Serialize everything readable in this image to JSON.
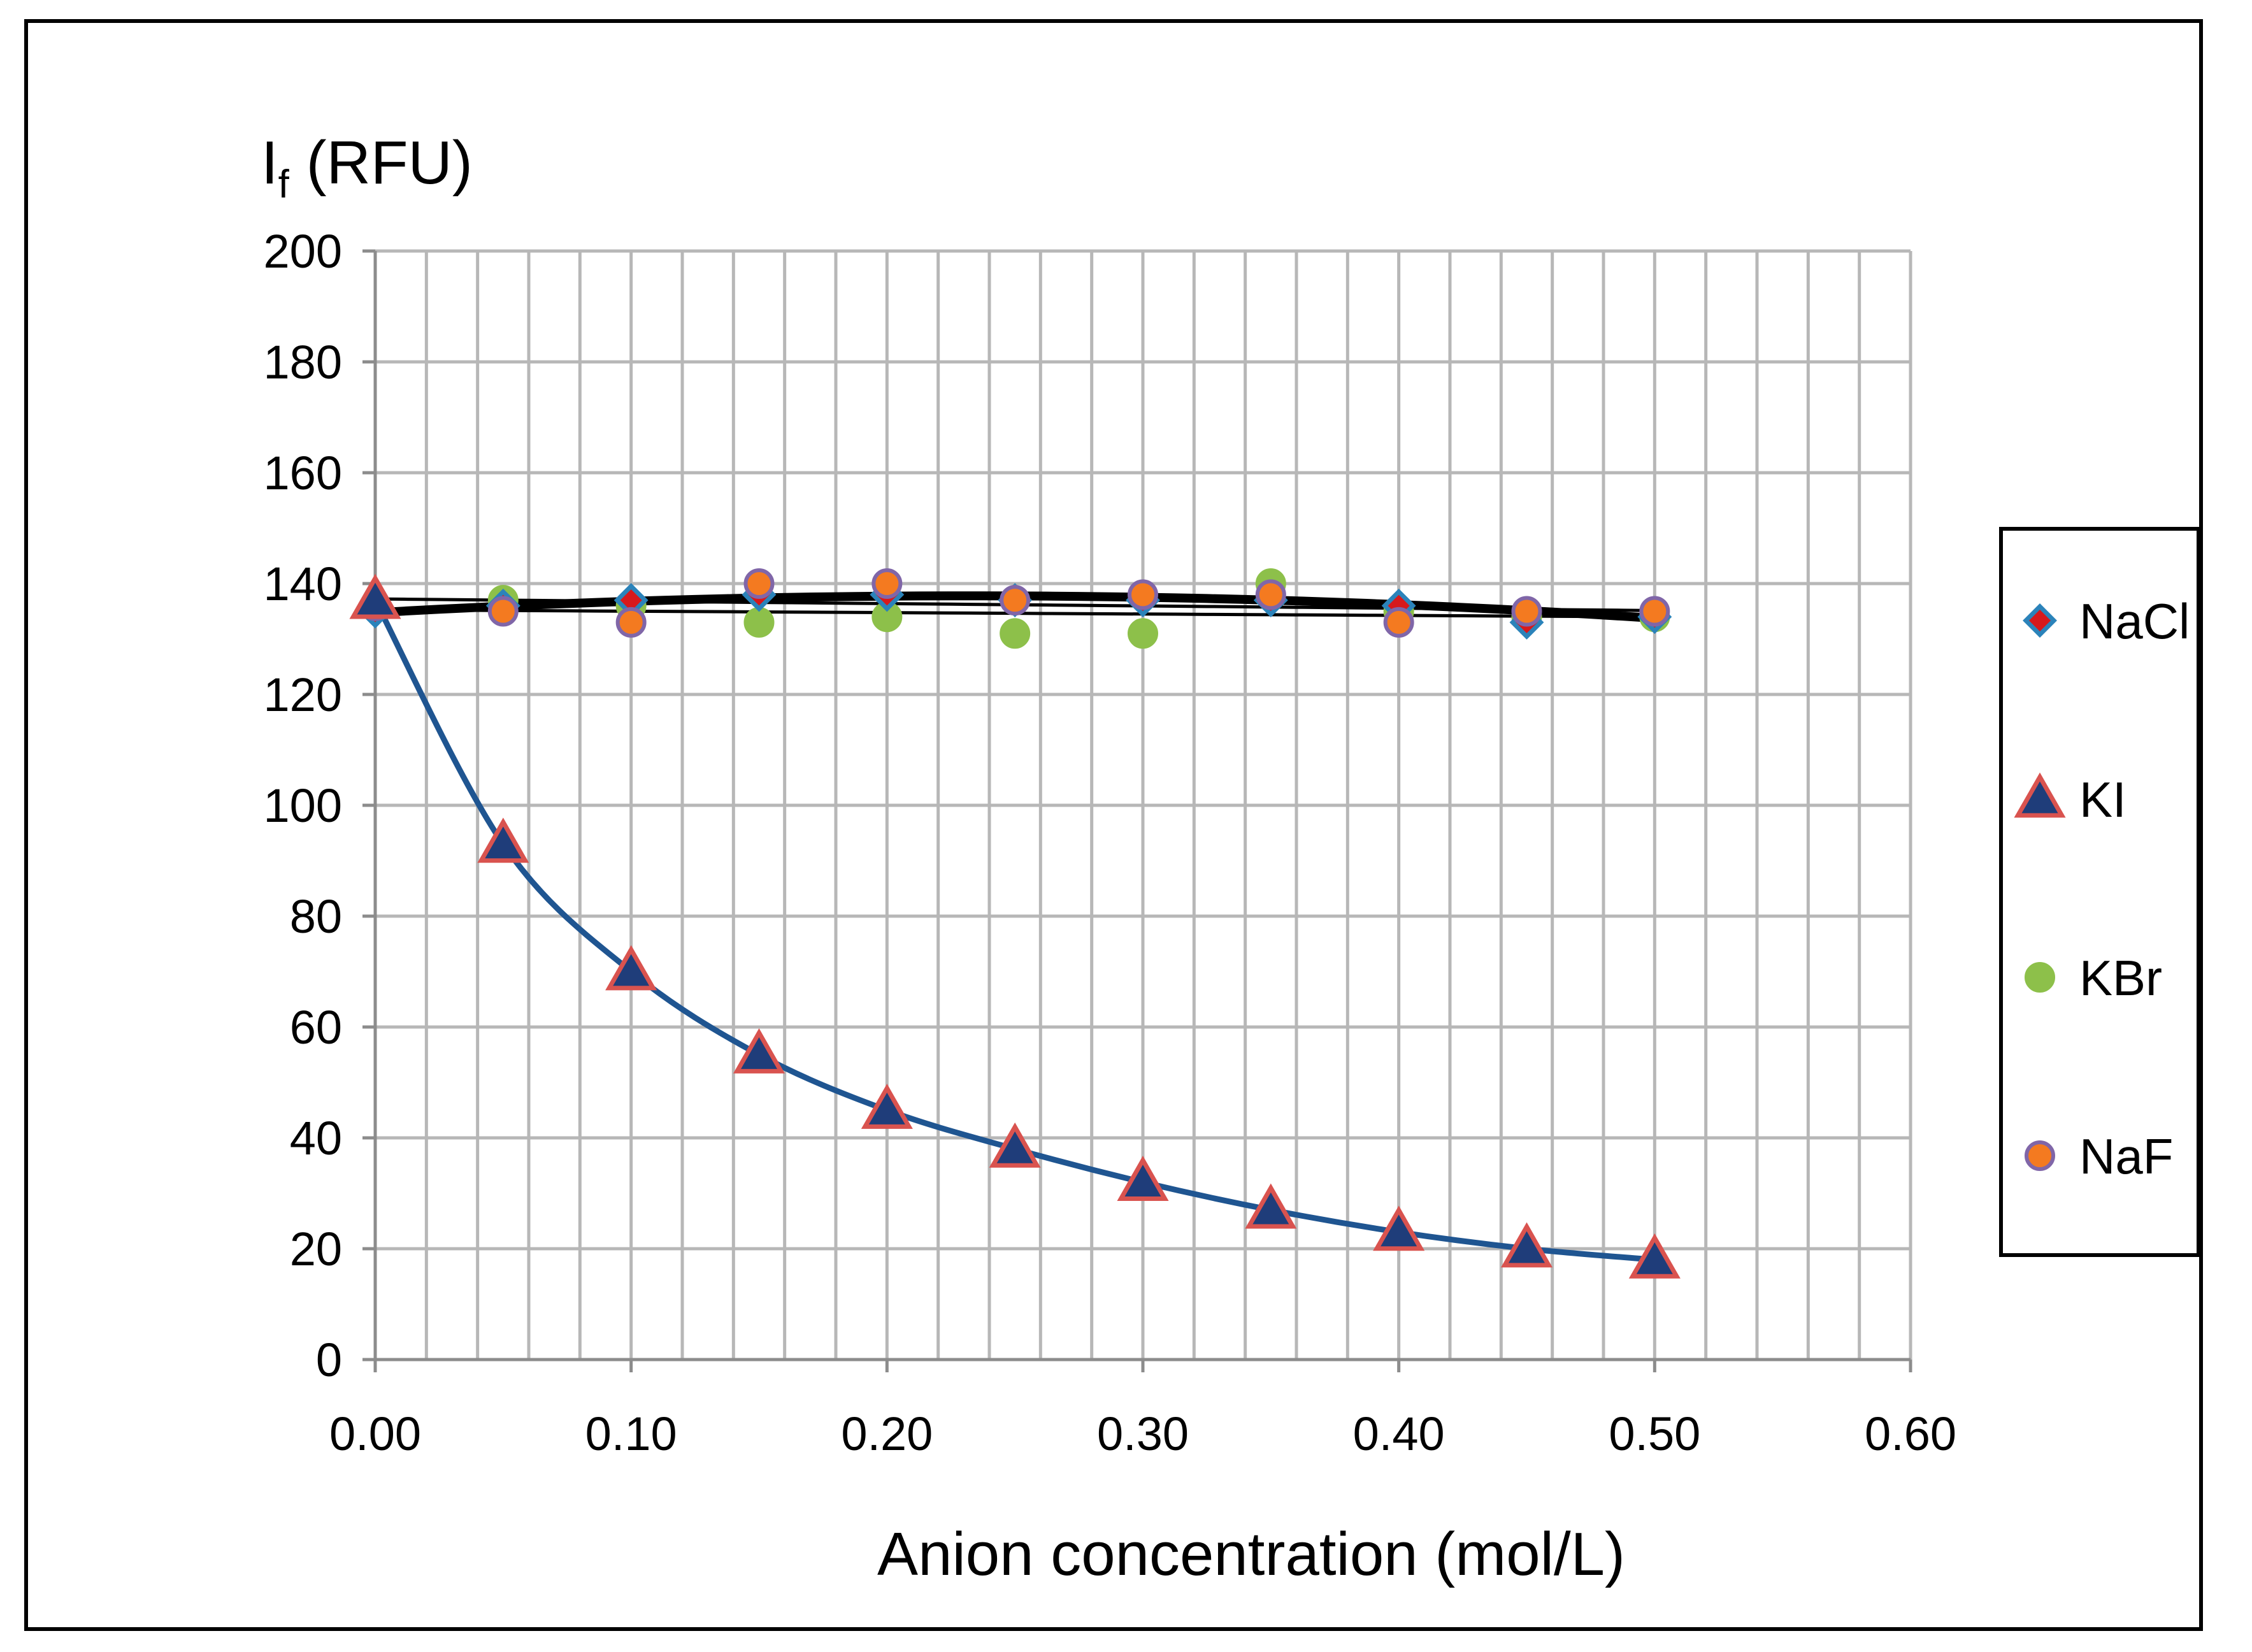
{
  "chart_data": {
    "type": "scatter",
    "title": "",
    "ylabel_main": "I",
    "ylabel_sub": "f",
    "ylabel_unit": " (RFU)",
    "xlabel": "Anion concentration (mol/L)",
    "xlim": [
      0,
      0.6
    ],
    "ylim": [
      0,
      200
    ],
    "x_major_ticks": [
      "0.00",
      "0.10",
      "0.20",
      "0.30",
      "0.40",
      "0.50",
      "0.60"
    ],
    "y_major_ticks": [
      "0",
      "20",
      "40",
      "60",
      "80",
      "100",
      "120",
      "140",
      "160",
      "180",
      "200"
    ],
    "x_minor_step": 0.02,
    "y_major_step": 20,
    "grid": true,
    "legend_position": "right",
    "series": [
      {
        "name": "NaCl",
        "marker": "diamond",
        "fill": "#d7191c",
        "stroke": "#2b83ba",
        "trend": "linear",
        "trend_color": "#000000",
        "x": [
          0.0,
          0.05,
          0.1,
          0.15,
          0.2,
          0.25,
          0.3,
          0.35,
          0.4,
          0.45,
          0.5
        ],
        "y": [
          135,
          136,
          137,
          138,
          138,
          137,
          137,
          137,
          136,
          133,
          134
        ]
      },
      {
        "name": "KI",
        "marker": "triangle",
        "fill": "#1f3d7a",
        "stroke": "#d9534f",
        "trend": "smooth",
        "trend_color": "#1f5591",
        "x": [
          0.0,
          0.05,
          0.1,
          0.15,
          0.2,
          0.25,
          0.3,
          0.35,
          0.4,
          0.45,
          0.5
        ],
        "y": [
          137,
          93,
          70,
          55,
          45,
          38,
          32,
          27,
          23,
          20,
          18
        ]
      },
      {
        "name": "KBr",
        "marker": "circle",
        "fill": "#8dc04a",
        "stroke": "#8dc04a",
        "trend": "linear",
        "trend_color": "#000000",
        "x": [
          0.0,
          0.05,
          0.1,
          0.15,
          0.2,
          0.25,
          0.3,
          0.35,
          0.4,
          0.45,
          0.5
        ],
        "y": [
          136,
          137,
          136,
          133,
          134,
          131,
          131,
          140,
          135,
          134,
          134
        ]
      },
      {
        "name": "NaF",
        "marker": "circle",
        "fill": "#f47a20",
        "stroke": "#8066a8",
        "trend": "poly",
        "trend_color": "#000000",
        "x": [
          0.0,
          0.05,
          0.1,
          0.15,
          0.2,
          0.25,
          0.3,
          0.35,
          0.4,
          0.45,
          0.5
        ],
        "y": [
          136,
          135,
          133,
          140,
          140,
          137,
          138,
          138,
          133,
          135,
          135
        ]
      }
    ]
  }
}
